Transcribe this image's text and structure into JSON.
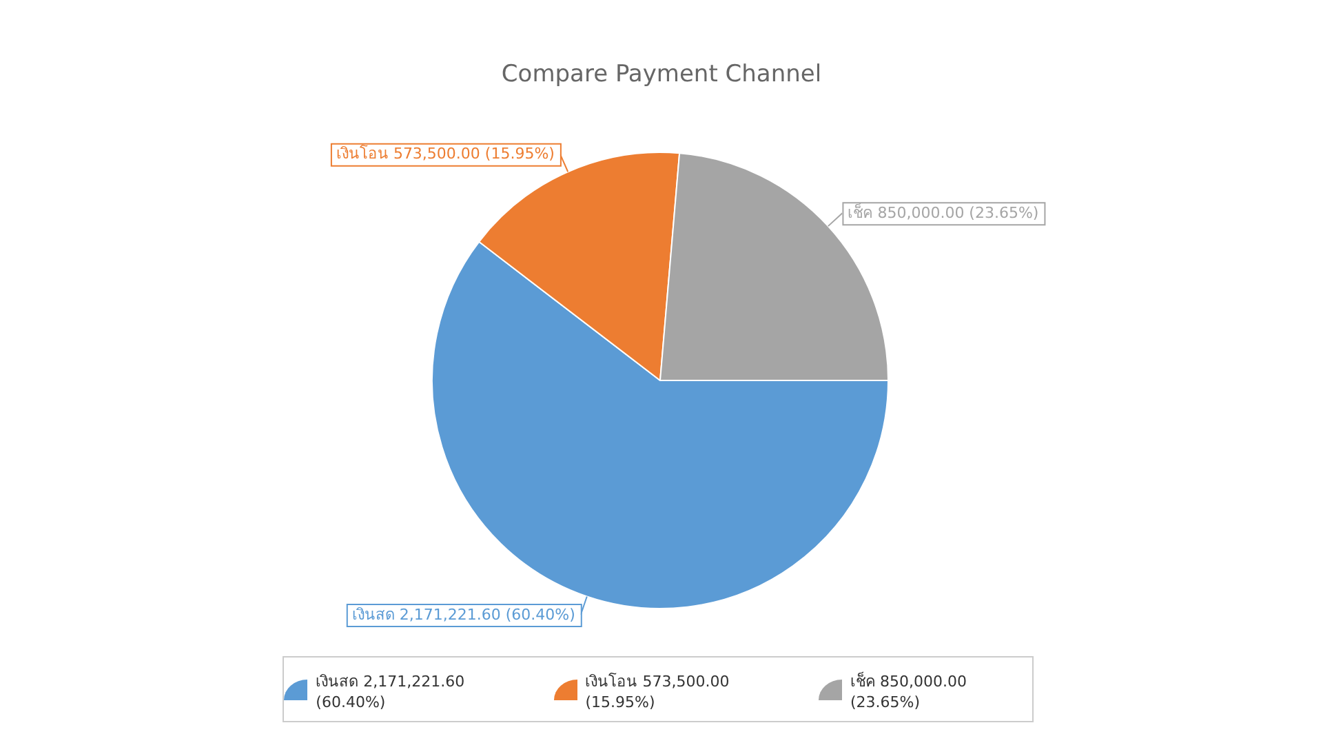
{
  "chart_data": {
    "type": "pie",
    "title": "Compare Payment Channel",
    "categories": [
      "เงินสด",
      "เงินโอน",
      "เช็ค"
    ],
    "values": [
      2171221.6,
      573500.0,
      850000.0
    ],
    "colors": [
      "#5b9bd5",
      "#ed7d31",
      "#a5a5a5"
    ],
    "value_labels": [
      "2,171,221.60 (60.40%)",
      "573,500.00 (15.95%)",
      "850,000.00 (23.65%)"
    ],
    "legend": "bottom"
  }
}
